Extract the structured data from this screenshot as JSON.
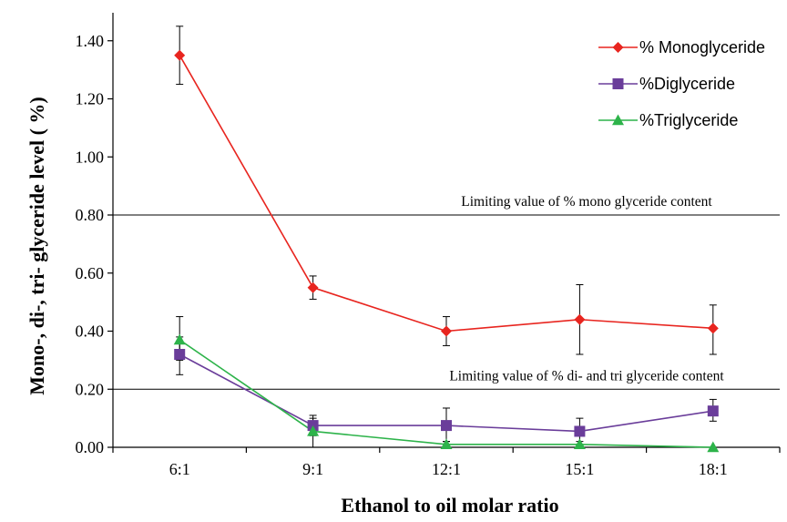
{
  "chart_data": {
    "type": "line",
    "xlabel": "Ethanol to oil molar ratio",
    "ylabel": "Mono-, di-, tri- glyceride level  ( %)",
    "categories": [
      "6:1",
      "9:1",
      "12:1",
      "15:1",
      "18:1"
    ],
    "ylim": [
      0,
      1.5
    ],
    "yticks": [
      0.0,
      0.2,
      0.4,
      0.6,
      0.8,
      1.0,
      1.2,
      1.4
    ],
    "ytick_labels": [
      "0.00",
      "0.20",
      "0.40",
      "0.60",
      "0.80",
      "1.00",
      "1.20",
      "1.40"
    ],
    "grid": false,
    "legend_position": "top-right",
    "series": [
      {
        "name": "% Monoglyceride",
        "color": "#e8251f",
        "marker": "diamond",
        "values": [
          1.35,
          0.55,
          0.4,
          0.44,
          0.41
        ],
        "error_low": [
          1.25,
          0.51,
          0.35,
          0.32,
          0.32
        ],
        "error_high": [
          1.45,
          0.59,
          0.45,
          0.56,
          0.49
        ]
      },
      {
        "name": "%Diglyceride",
        "color": "#6a3d9a",
        "marker": "square",
        "values": [
          0.32,
          0.075,
          0.075,
          0.055,
          0.125
        ],
        "error_low": [
          0.25,
          0.04,
          0.02,
          0.01,
          0.09
        ],
        "error_high": [
          0.38,
          0.11,
          0.135,
          0.1,
          0.165
        ]
      },
      {
        "name": "%Triglyceride",
        "color": "#2db34a",
        "marker": "triangle",
        "values": [
          0.37,
          0.055,
          0.01,
          0.01,
          0.0
        ],
        "error_low": [
          0.3,
          0.0,
          0.0,
          0.0,
          0.0
        ],
        "error_high": [
          0.45,
          0.1,
          0.02,
          0.02,
          0.0
        ]
      }
    ],
    "reference_lines": [
      {
        "value": 0.8,
        "label": "Limiting value of  % mono glyceride content"
      },
      {
        "value": 0.2,
        "label": "Limiting value of % di- and tri glyceride content"
      }
    ]
  }
}
